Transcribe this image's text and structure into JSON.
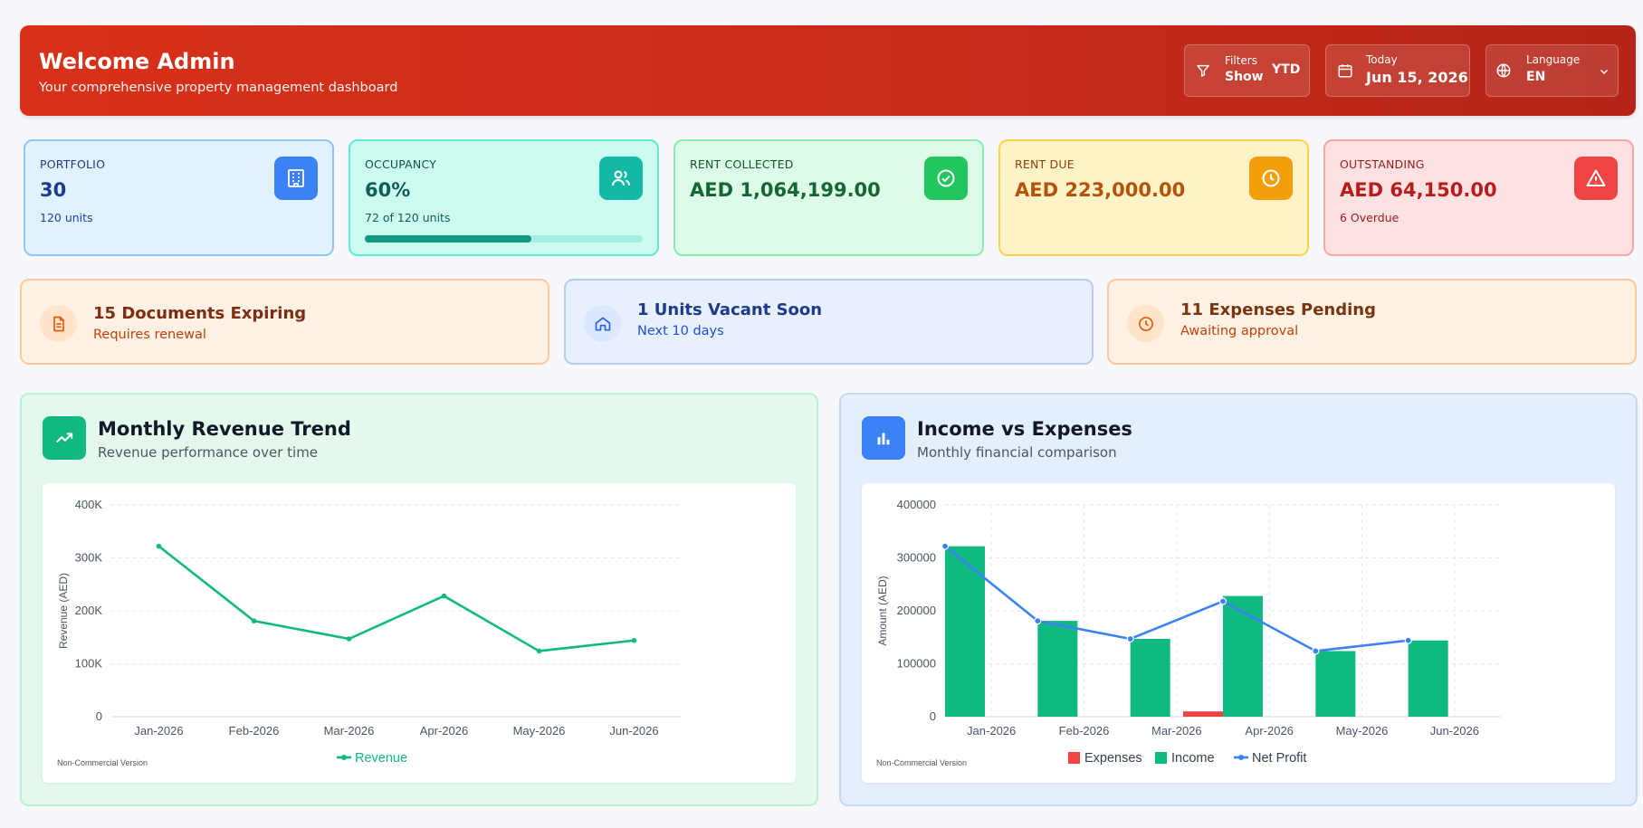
{
  "header": {
    "title": "Welcome Admin",
    "subtitle": "Your comprehensive property management dashboard",
    "filters": {
      "label": "Filters",
      "action": "Show",
      "period": "YTD"
    },
    "date": {
      "label": "Today",
      "value": "Jun 15, 2026"
    },
    "language": {
      "label": "Language",
      "value": "EN"
    }
  },
  "kpis": {
    "portfolio": {
      "label": "PORTFOLIO",
      "value": "30",
      "sub": "120 units"
    },
    "occupancy": {
      "label": "OCCUPANCY",
      "value": "60%",
      "sub": "72 of 120 units",
      "progress": 0.6
    },
    "rent_collected": {
      "label": "RENT COLLECTED",
      "value": "AED 1,064,199.00"
    },
    "rent_due": {
      "label": "RENT DUE",
      "value": "AED 223,000.00"
    },
    "outstanding": {
      "label": "OUTSTANDING",
      "value": "AED 64,150.00",
      "sub": "6 Overdue"
    }
  },
  "alerts": {
    "documents": {
      "title": "15 Documents Expiring",
      "sub": "Requires renewal"
    },
    "vacant": {
      "title": "1 Units Vacant Soon",
      "sub": "Next 10 days"
    },
    "expenses": {
      "title": "11 Expenses Pending",
      "sub": "Awaiting approval"
    }
  },
  "revenue_panel": {
    "title": "Monthly Revenue Trend",
    "subtitle": "Revenue performance over time",
    "watermark": "Non-Commercial Version"
  },
  "income_panel": {
    "title": "Income vs Expenses",
    "subtitle": "Monthly financial comparison",
    "watermark": "Non-Commercial Version"
  },
  "colors": {
    "revenue": "#10b981",
    "income": "#10b981",
    "expenses": "#ef4444",
    "net_profit": "#3b82f6"
  },
  "chart_data": [
    {
      "type": "line",
      "categories": [
        "Jan-2026",
        "Feb-2026",
        "Mar-2026",
        "Apr-2026",
        "May-2026",
        "Jun-2026"
      ],
      "series": [
        {
          "name": "Revenue",
          "values": [
            322000,
            181000,
            147000,
            228000,
            124000,
            144000
          ]
        }
      ],
      "ylabel": "Revenue (AED)",
      "ylim": [
        0,
        400000
      ],
      "yticks": [
        "0",
        "100K",
        "200K",
        "300K",
        "400K"
      ],
      "grid": true,
      "legend": "bottom"
    },
    {
      "type": "bar",
      "categories": [
        "Jan-2026",
        "Feb-2026",
        "Mar-2026",
        "Apr-2026",
        "May-2026",
        "Jun-2026"
      ],
      "series": [
        {
          "name": "Expenses",
          "values": [
            0,
            0,
            0,
            10000,
            0,
            0
          ]
        },
        {
          "name": "Income",
          "values": [
            322000,
            181000,
            147000,
            228000,
            124000,
            144000
          ]
        },
        {
          "name": "Net Profit",
          "values": [
            322000,
            181000,
            147000,
            218000,
            124000,
            144000
          ]
        }
      ],
      "ylabel": "Amount (AED)",
      "ylim": [
        0,
        400000
      ],
      "yticks": [
        "0",
        "100000",
        "200000",
        "300000",
        "400000"
      ],
      "grid": true,
      "legend": "bottom"
    }
  ]
}
